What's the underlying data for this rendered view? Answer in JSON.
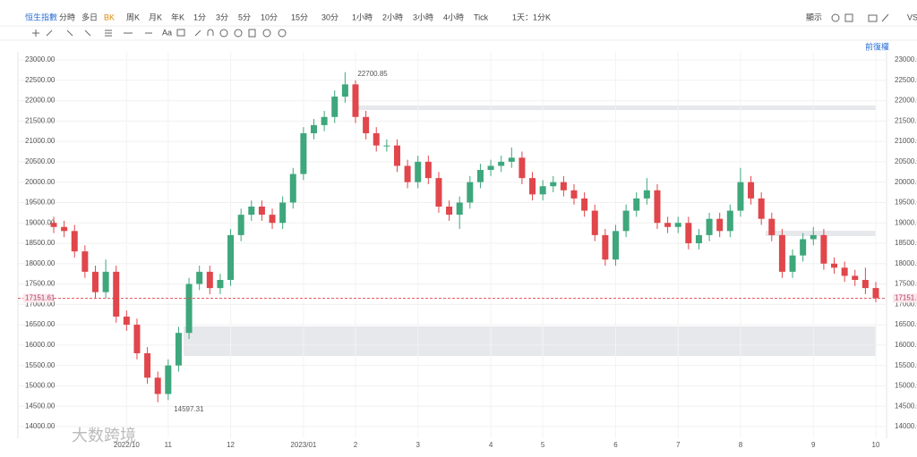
{
  "toolbar": {
    "symbol": "恒生指數",
    "periods": [
      "分時",
      "多日",
      "BK",
      "周K",
      "月K",
      "年K",
      "1分",
      "3分",
      "5分",
      "10分",
      "15分",
      "30分",
      "1小時",
      "2小時",
      "3小時",
      "4小時",
      "Tick",
      "1天：1分K"
    ],
    "display": "顯示",
    "text_tool": "Aa",
    "adjust": "前復權",
    "right_cut": "VS"
  },
  "watermark": "大数跨境",
  "chart_data": {
    "type": "candlestick",
    "categories": [
      null,
      null,
      null,
      null,
      null,
      null,
      null,
      "2022/10",
      null,
      null,
      null,
      "11",
      null,
      null,
      null,
      null,
      null,
      "12",
      null,
      null,
      null,
      null,
      null,
      null,
      "2023/01",
      null,
      null,
      null,
      null,
      "2",
      null,
      null,
      null,
      null,
      null,
      "3",
      null,
      null,
      null,
      null,
      null,
      null,
      "4",
      null,
      null,
      null,
      null,
      "5",
      null,
      null,
      null,
      null,
      null,
      null,
      "6",
      null,
      null,
      null,
      null,
      null,
      "7",
      null,
      null,
      null,
      null,
      null,
      "8",
      null,
      null,
      null,
      null,
      null,
      null,
      "9",
      null,
      null,
      null,
      null,
      null,
      "10"
    ],
    "open": [
      19000,
      18900,
      18800,
      18300,
      17800,
      17300,
      17800,
      16700,
      16500,
      15800,
      15200,
      14800,
      15500,
      16300,
      17500,
      17800,
      17400,
      17600,
      18700,
      19200,
      19400,
      19200,
      19000,
      19500,
      20200,
      21200,
      21400,
      21600,
      22100,
      22400,
      21600,
      21200,
      20900,
      20900,
      20400,
      20000,
      20500,
      20100,
      19400,
      19200,
      19500,
      20000,
      20300,
      20400,
      20500,
      20600,
      20100,
      19700,
      19900,
      20000,
      19800,
      19600,
      19300,
      18700,
      18100,
      18800,
      19300,
      19600,
      19800,
      19000,
      18900,
      19000,
      18500,
      18700,
      19100,
      18800,
      19300,
      20000,
      19600,
      19100,
      18700,
      17800,
      18200,
      18600,
      18700,
      18000,
      17900,
      17700,
      17600,
      17400
    ],
    "high": [
      19150,
      19050,
      18950,
      18450,
      17950,
      18100,
      17950,
      16850,
      16650,
      15950,
      15350,
      15650,
      16450,
      17650,
      17950,
      17950,
      17750,
      18850,
      19350,
      19550,
      19550,
      19350,
      19650,
      20350,
      21350,
      21550,
      21750,
      22250,
      22700.85,
      22500,
      21750,
      21350,
      21050,
      21050,
      20550,
      20650,
      20650,
      20250,
      19550,
      19650,
      20150,
      20450,
      20550,
      20650,
      20850,
      20750,
      20250,
      20050,
      20150,
      20150,
      19950,
      19750,
      19450,
      18850,
      18950,
      19450,
      19750,
      20100,
      19950,
      19150,
      19150,
      19150,
      18850,
      19250,
      19250,
      19450,
      20350,
      20150,
      19750,
      19250,
      18850,
      18350,
      18750,
      18900,
      18850,
      18150,
      18050,
      17850,
      17900,
      17550
    ],
    "low": [
      18750,
      18650,
      18150,
      17650,
      17150,
      17150,
      16550,
      16350,
      15650,
      15050,
      14597.31,
      14650,
      15350,
      16150,
      17350,
      17250,
      17250,
      17450,
      18550,
      19050,
      19050,
      18850,
      18850,
      19350,
      20050,
      21050,
      21250,
      21450,
      21950,
      21450,
      21050,
      20750,
      20750,
      20250,
      19850,
      19850,
      19950,
      19250,
      19050,
      18850,
      19350,
      19850,
      20150,
      20250,
      20350,
      19950,
      19550,
      19550,
      19750,
      19650,
      19450,
      19150,
      18550,
      17950,
      17950,
      18650,
      19150,
      19450,
      18850,
      18750,
      18750,
      18350,
      18350,
      18550,
      18650,
      18650,
      19150,
      19450,
      18950,
      18550,
      17650,
      17650,
      18050,
      18450,
      17850,
      17750,
      17550,
      17450,
      17250,
      17050
    ],
    "close": [
      18900,
      18800,
      18300,
      17800,
      17300,
      17800,
      16700,
      16500,
      15800,
      15200,
      14800,
      15500,
      16300,
      17500,
      17800,
      17400,
      17600,
      18700,
      19200,
      19400,
      19200,
      19000,
      19500,
      20200,
      21200,
      21400,
      21600,
      22100,
      22400,
      21600,
      21200,
      20900,
      20900,
      20400,
      20000,
      20500,
      20100,
      19400,
      19200,
      19500,
      20000,
      20300,
      20400,
      20500,
      20600,
      20100,
      19700,
      19900,
      20000,
      19800,
      19600,
      19300,
      18700,
      18100,
      18800,
      19300,
      19600,
      19800,
      19000,
      18900,
      19000,
      18500,
      18700,
      19100,
      18800,
      19300,
      20000,
      19600,
      19100,
      18700,
      17800,
      18200,
      18600,
      18700,
      18000,
      17900,
      17700,
      17600,
      17400,
      17151.61
    ],
    "up_color": "#3ea77c",
    "down_color": "#e0464b",
    "max_label": "22700.85",
    "min_label": "14597.31",
    "last_label": "17151.61",
    "ylim": [
      13714,
      23198
    ],
    "yticks": [
      {
        "value": 14000,
        "label": "14000.00"
      },
      {
        "value": 14500,
        "label": "14500.00"
      },
      {
        "value": 15000,
        "label": "15000.00"
      },
      {
        "value": 15500,
        "label": "15500.00"
      },
      {
        "value": 16000,
        "label": "16000.00"
      },
      {
        "value": 16500,
        "label": "16500.00"
      },
      {
        "value": 17000,
        "label": "17000.00"
      },
      {
        "value": 17500,
        "label": "17500.00"
      },
      {
        "value": 18000,
        "label": "18000.00"
      },
      {
        "value": 18500,
        "label": "18500.00"
      },
      {
        "value": 19000,
        "label": "19000.00"
      },
      {
        "value": 19500,
        "label": "19500.00"
      },
      {
        "value": 20000,
        "label": "20000.00"
      },
      {
        "value": 20500,
        "label": "20500.00"
      },
      {
        "value": 21000,
        "label": "21000.00"
      },
      {
        "value": 21500,
        "label": "21500.00"
      },
      {
        "value": 22000,
        "label": "22000.00"
      },
      {
        "value": 22500,
        "label": "22500.00"
      },
      {
        "value": 23000,
        "label": "23000.00"
      }
    ],
    "grid": true
  }
}
